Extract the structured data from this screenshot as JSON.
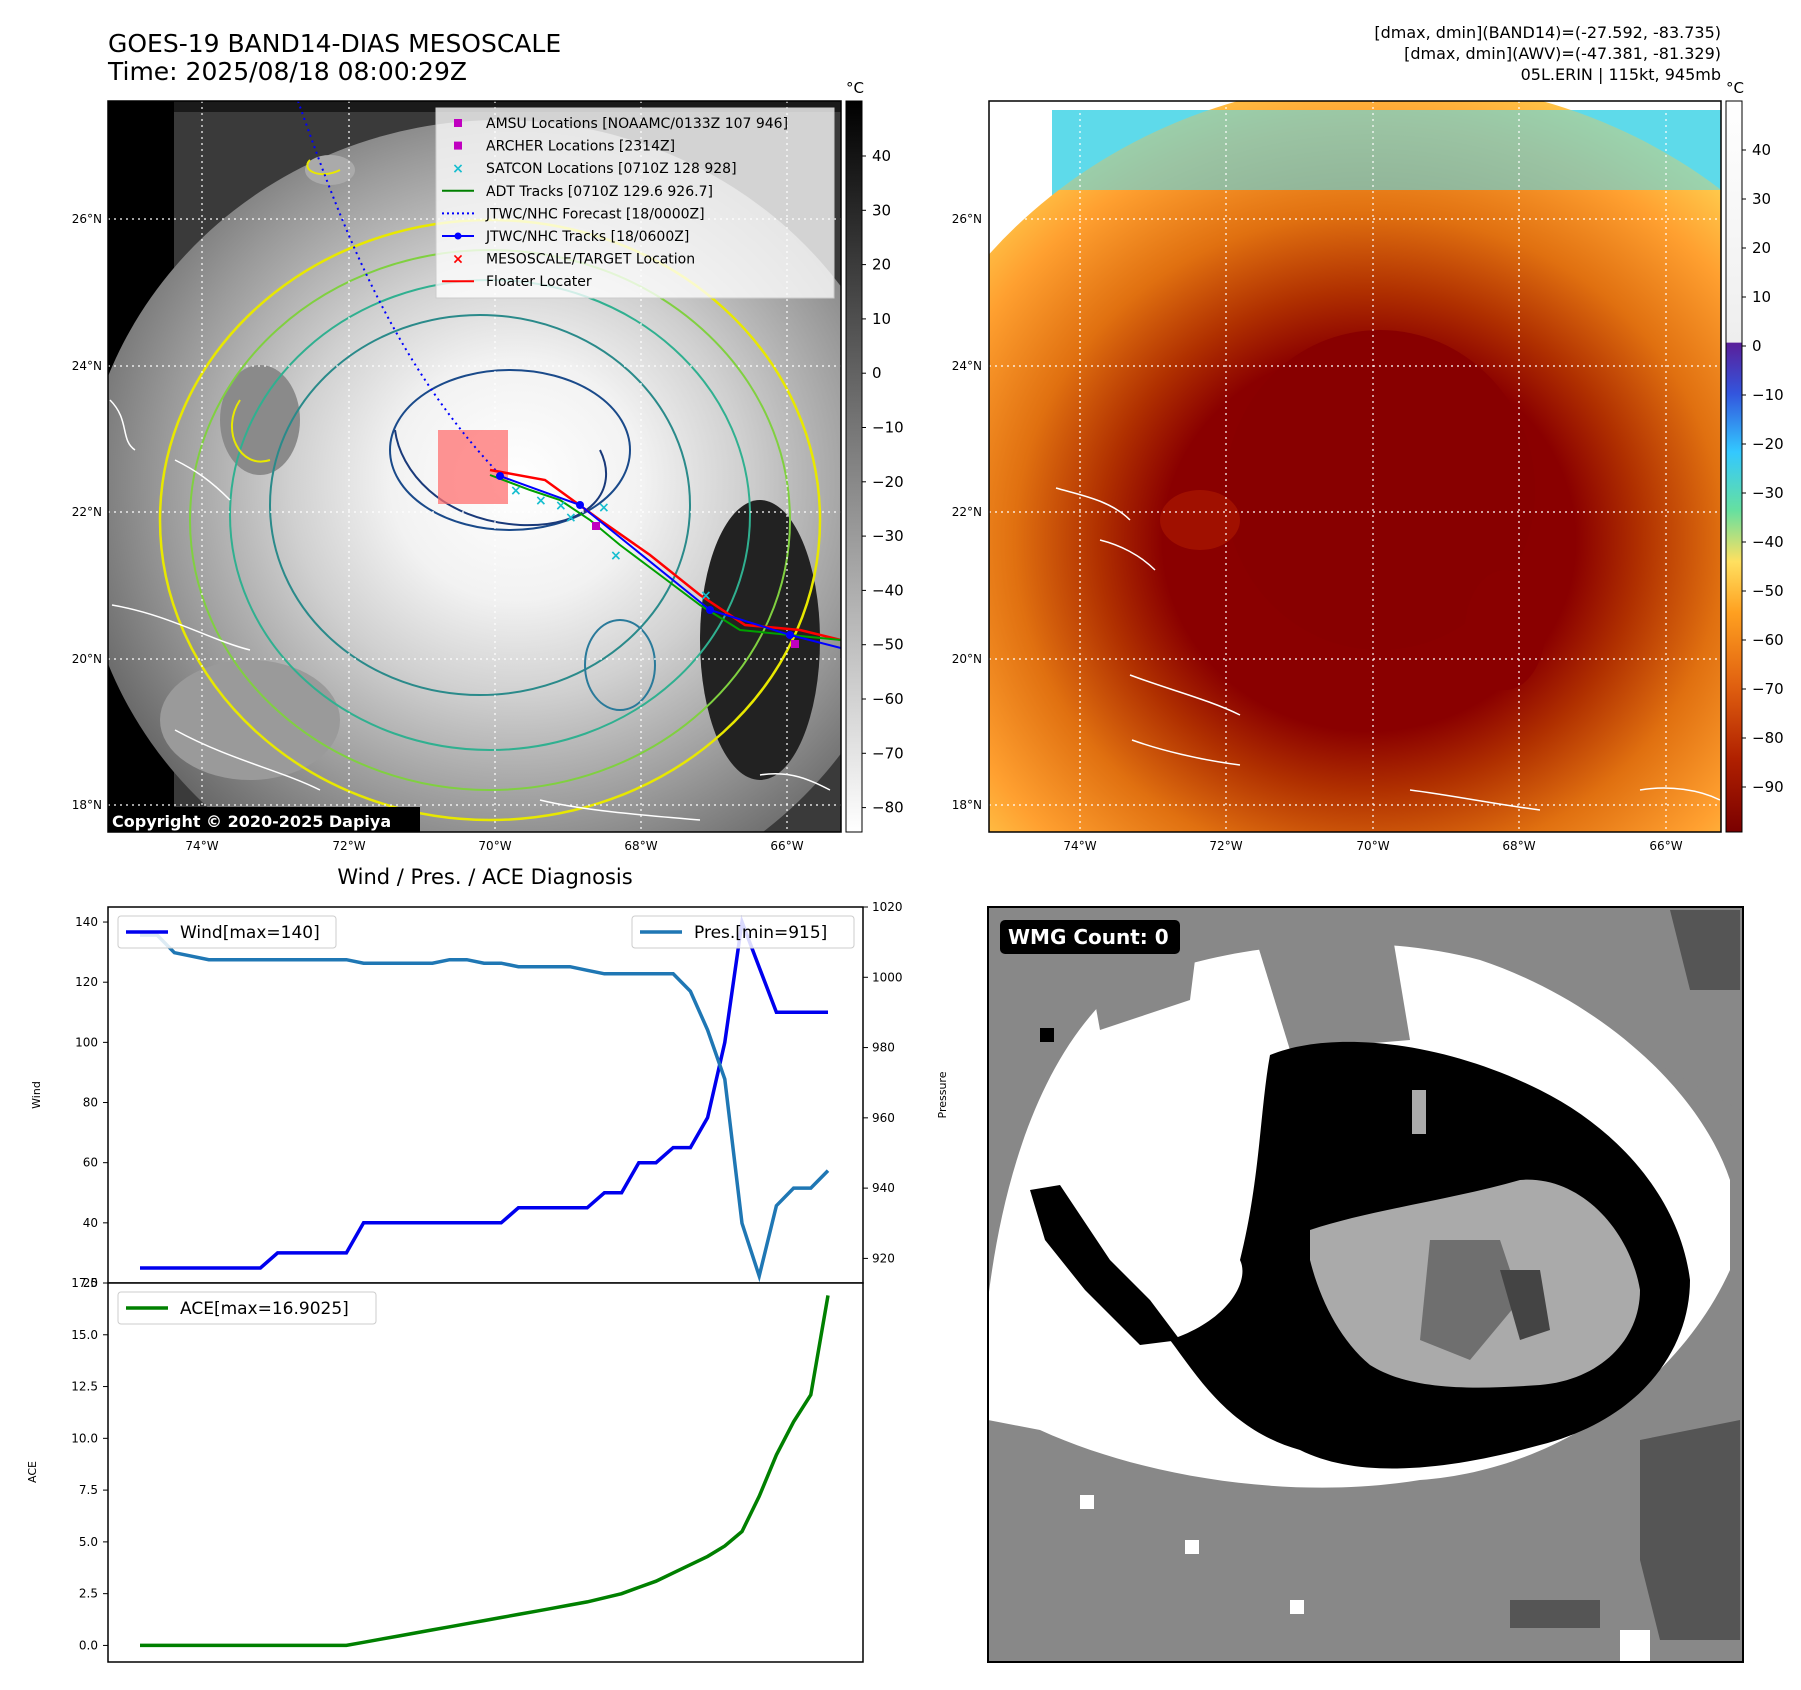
{
  "header": {
    "title_line1": "GOES-19 BAND14-DIAS MESOSCALE",
    "title_line2": "Time: 2025/08/18 08:00:29Z",
    "right_line1": "[dmax, dmin](BAND14)=(-27.592, -83.735)",
    "right_line2": "[dmax, dmin](AWV)=(-47.381, -81.329)",
    "right_line3": "05L.ERIN | 115kt, 945mb"
  },
  "map": {
    "lon_labels": [
      "74°W",
      "72°W",
      "70°W",
      "68°W",
      "66°W"
    ],
    "lat_labels": [
      "26°N",
      "24°N",
      "22°N",
      "20°N",
      "18°N"
    ],
    "copyright": "Copyright © 2020-2025 Dapiya",
    "colorbar_unit": "°C",
    "ir_colorbar_ticks": [
      "40",
      "30",
      "20",
      "10",
      "0",
      "−10",
      "−20",
      "−30",
      "−40",
      "−50",
      "−60",
      "−70",
      "−80"
    ],
    "rgb_colorbar_ticks": [
      "40",
      "30",
      "20",
      "10",
      "0",
      "−10",
      "−20",
      "−30",
      "−40",
      "−50",
      "−60",
      "−70",
      "−80",
      "−90"
    ],
    "legend": [
      {
        "label": "AMSU Locations [NOAAMC/0133Z 107 946]",
        "color": "#c000c0",
        "marker": "square"
      },
      {
        "label": "ARCHER Locations [2314Z]",
        "color": "#c000c0",
        "marker": "square"
      },
      {
        "label": "SATCON Locations [0710Z 128 928]",
        "color": "#17becf",
        "marker": "x"
      },
      {
        "label": "ADT Tracks [0710Z 129.6 926.7]",
        "color": "#008000",
        "marker": "line"
      },
      {
        "label": "JTWC/NHC Forecast [18/0000Z]",
        "color": "#0000ff",
        "marker": "dotted"
      },
      {
        "label": "JTWC/NHC Tracks [18/0600Z]",
        "color": "#0000ff",
        "marker": "line-dot"
      },
      {
        "label": "MESOSCALE/TARGET Location",
        "color": "#ff0000",
        "marker": "x"
      },
      {
        "label": "Floater Locater",
        "color": "#ff0000",
        "marker": "line"
      }
    ]
  },
  "wmg": {
    "label": "WMG Count: 0"
  },
  "chart_data": [
    {
      "type": "line",
      "title": "Wind / Pres. / ACE Diagnosis",
      "ylabel": "Wind",
      "y2label": "Pressure",
      "ylim": [
        20,
        145
      ],
      "y2lim": [
        913,
        1020
      ],
      "yticks": [
        20,
        40,
        60,
        80,
        100,
        120,
        140
      ],
      "y2ticks": [
        920,
        940,
        960,
        980,
        1000,
        1020
      ],
      "series": [
        {
          "name": "Wind[max=140]",
          "color": "#0000ee",
          "axis": "left",
          "x": [
            0,
            1,
            2,
            3,
            4,
            5,
            6,
            7,
            8,
            9,
            10,
            11,
            12,
            13,
            14,
            15,
            16,
            17,
            18,
            19,
            20,
            21,
            22,
            23,
            24,
            25,
            26,
            27,
            28,
            29,
            30,
            31,
            32,
            33,
            34,
            35,
            36,
            37,
            38,
            39,
            40
          ],
          "values": [
            25,
            25,
            25,
            25,
            25,
            25,
            25,
            25,
            30,
            30,
            30,
            30,
            30,
            40,
            40,
            40,
            40,
            40,
            40,
            40,
            40,
            40,
            45,
            45,
            45,
            45,
            45,
            50,
            50,
            60,
            60,
            65,
            65,
            75,
            100,
            140,
            125,
            110,
            110,
            110,
            110
          ]
        },
        {
          "name": "Pres.[min=915]",
          "color": "#1f77b4",
          "axis": "right",
          "x": [
            0,
            1,
            2,
            3,
            4,
            5,
            6,
            7,
            8,
            9,
            10,
            11,
            12,
            13,
            14,
            15,
            16,
            17,
            18,
            19,
            20,
            21,
            22,
            23,
            24,
            25,
            26,
            27,
            28,
            29,
            30,
            31,
            32,
            33,
            34,
            35,
            36,
            37,
            38,
            39,
            40
          ],
          "values": [
            1012,
            1012,
            1007,
            1006,
            1005,
            1005,
            1005,
            1005,
            1005,
            1005,
            1005,
            1005,
            1005,
            1004,
            1004,
            1004,
            1004,
            1004,
            1005,
            1005,
            1004,
            1004,
            1003,
            1003,
            1003,
            1003,
            1002,
            1001,
            1001,
            1001,
            1001,
            1001,
            996,
            985,
            971,
            930,
            915,
            935,
            940,
            940,
            945
          ]
        }
      ]
    },
    {
      "type": "line",
      "ylabel": "ACE",
      "ylim": [
        -0.8,
        17.5
      ],
      "yticks": [
        0.0,
        2.5,
        5.0,
        7.5,
        10.0,
        12.5,
        15.0,
        17.5
      ],
      "series": [
        {
          "name": "ACE[max=16.9025]",
          "color": "#008000",
          "x": [
            0,
            1,
            2,
            3,
            4,
            5,
            6,
            7,
            8,
            9,
            10,
            11,
            12,
            13,
            14,
            15,
            16,
            17,
            18,
            19,
            20,
            21,
            22,
            23,
            24,
            25,
            26,
            27,
            28,
            29,
            30,
            31,
            32,
            33,
            34,
            35,
            36,
            37,
            38,
            39,
            40
          ],
          "values": [
            0,
            0,
            0,
            0,
            0,
            0,
            0,
            0,
            0,
            0,
            0,
            0,
            0,
            0.15,
            0.3,
            0.45,
            0.6,
            0.75,
            0.9,
            1.05,
            1.2,
            1.35,
            1.5,
            1.65,
            1.8,
            1.95,
            2.1,
            2.3,
            2.5,
            2.8,
            3.1,
            3.5,
            3.9,
            4.3,
            4.8,
            5.5,
            7.2,
            9.2,
            10.8,
            12.1,
            16.9
          ]
        }
      ]
    }
  ]
}
